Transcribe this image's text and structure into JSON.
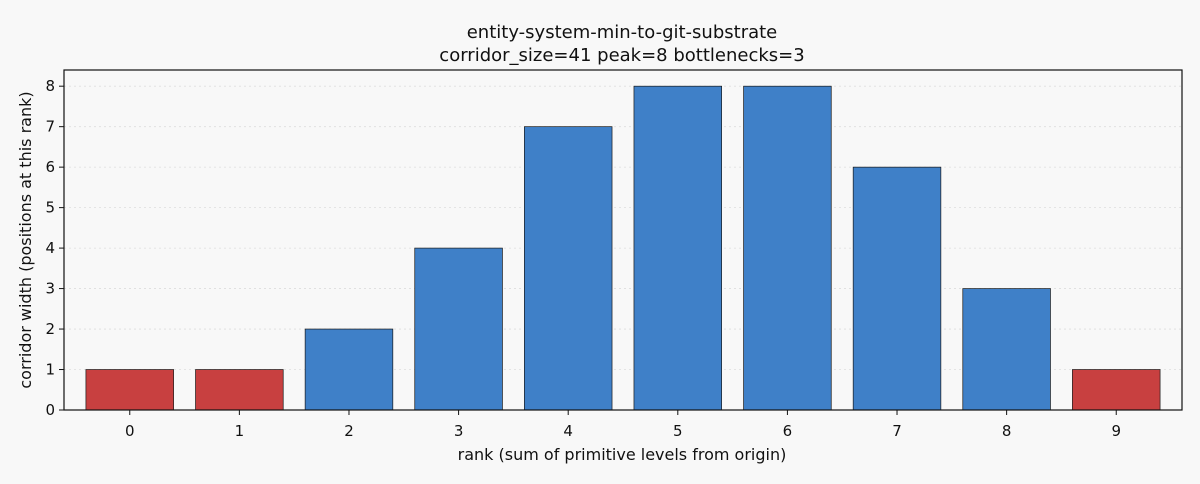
{
  "chart_data": {
    "type": "bar",
    "title": "entity-system-min-to-git-substrate",
    "subtitle": "corridor_size=41  peak=8  bottlenecks=3",
    "xlabel": "rank (sum of primitive levels from origin)",
    "ylabel": "corridor width (positions at this rank)",
    "categories": [
      "0",
      "1",
      "2",
      "3",
      "4",
      "5",
      "6",
      "7",
      "8",
      "9"
    ],
    "values": [
      1,
      1,
      2,
      4,
      7,
      8,
      8,
      6,
      3,
      1
    ],
    "bottleneck": [
      true,
      true,
      false,
      false,
      false,
      false,
      false,
      false,
      false,
      true
    ],
    "ylim": [
      0,
      8.4
    ],
    "yticks": [
      "0",
      "1",
      "2",
      "3",
      "4",
      "5",
      "6",
      "7",
      "8"
    ],
    "grid": "horizontal-dotted",
    "colors": {
      "normal_bar": "#3f80c8",
      "bottleneck_bar": "#c84040",
      "bar_edge": "#1a1a1a",
      "grid": "#dddddd",
      "background": "#f8f8f8"
    }
  }
}
